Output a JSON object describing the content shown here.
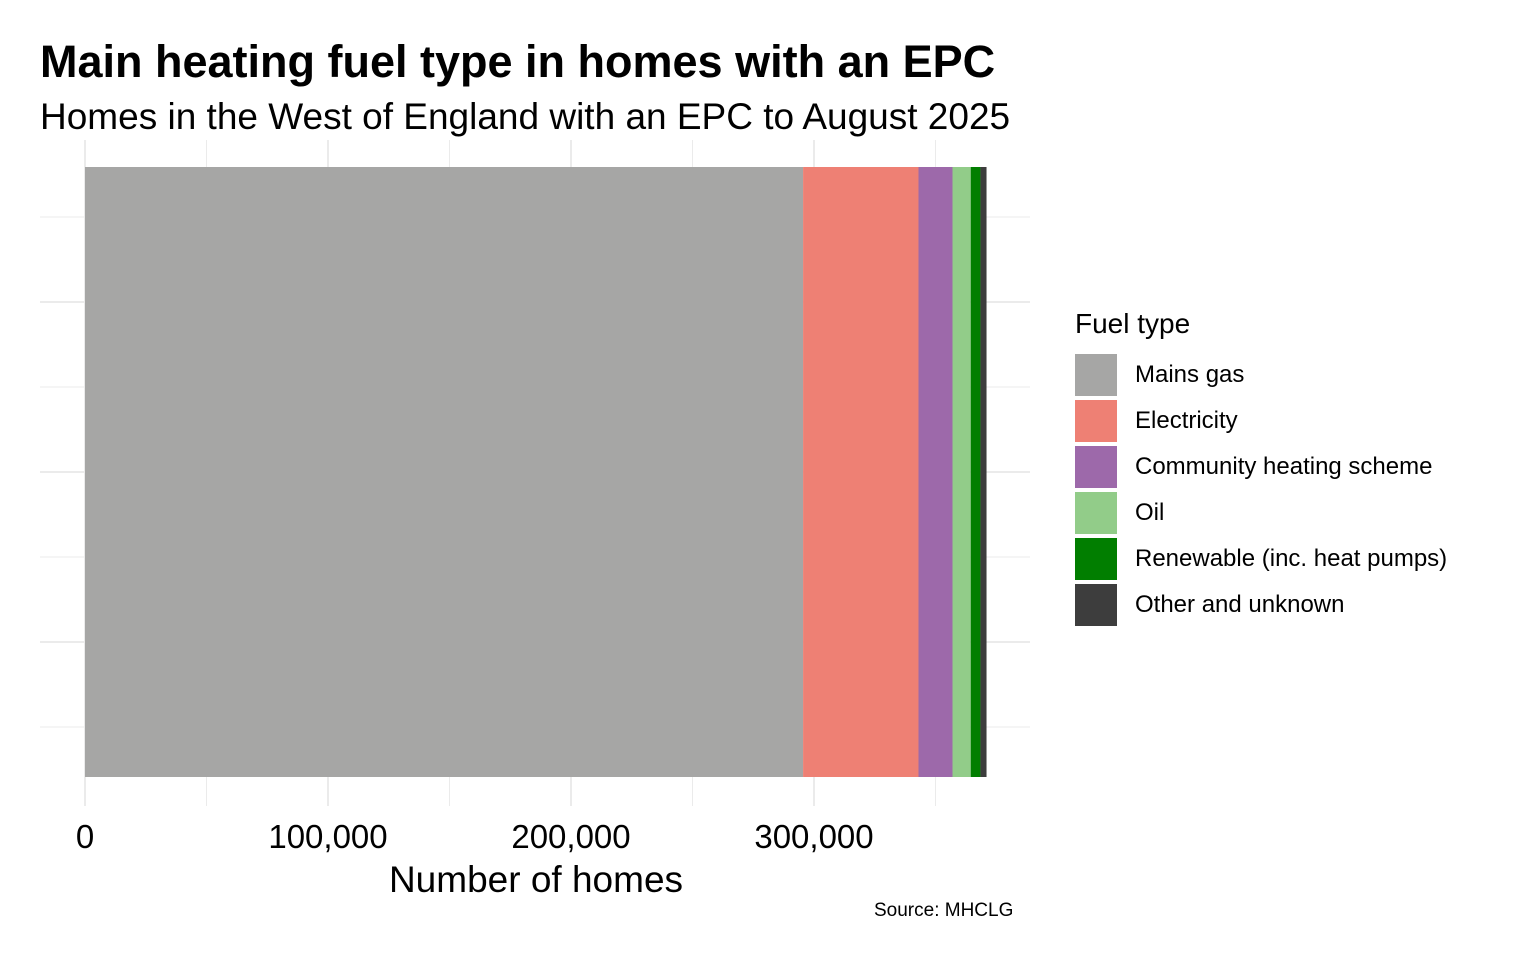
{
  "chart_data": {
    "type": "bar",
    "orientation": "horizontal",
    "stacked": true,
    "title": "Main heating fuel type in homes with an EPC",
    "subtitle": "Homes in the West of England with an EPC to August 2025",
    "xlabel": "Number of homes",
    "ylabel": "",
    "caption": "Source: MHCLG",
    "xlim": [
      0,
      390000
    ],
    "x_ticks": [
      0,
      100000,
      200000,
      300000
    ],
    "x_tick_labels": [
      "0",
      "100,000",
      "200,000",
      "300,000"
    ],
    "grid": true,
    "legend_title": "Fuel type",
    "legend_position": "right",
    "series": [
      {
        "name": "Mains gas",
        "value": 295500,
        "color": "#A6A6A5"
      },
      {
        "name": "Electricity",
        "value": 47500,
        "color": "#EE8074"
      },
      {
        "name": "Community heating scheme",
        "value": 14000,
        "color": "#9D69AA"
      },
      {
        "name": "Oil",
        "value": 7500,
        "color": "#92CC89"
      },
      {
        "name": "Renewable (inc. heat pumps)",
        "value": 4000,
        "color": "#017E00"
      },
      {
        "name": "Other and unknown",
        "value": 2500,
        "color": "#3D3D3D"
      }
    ]
  }
}
